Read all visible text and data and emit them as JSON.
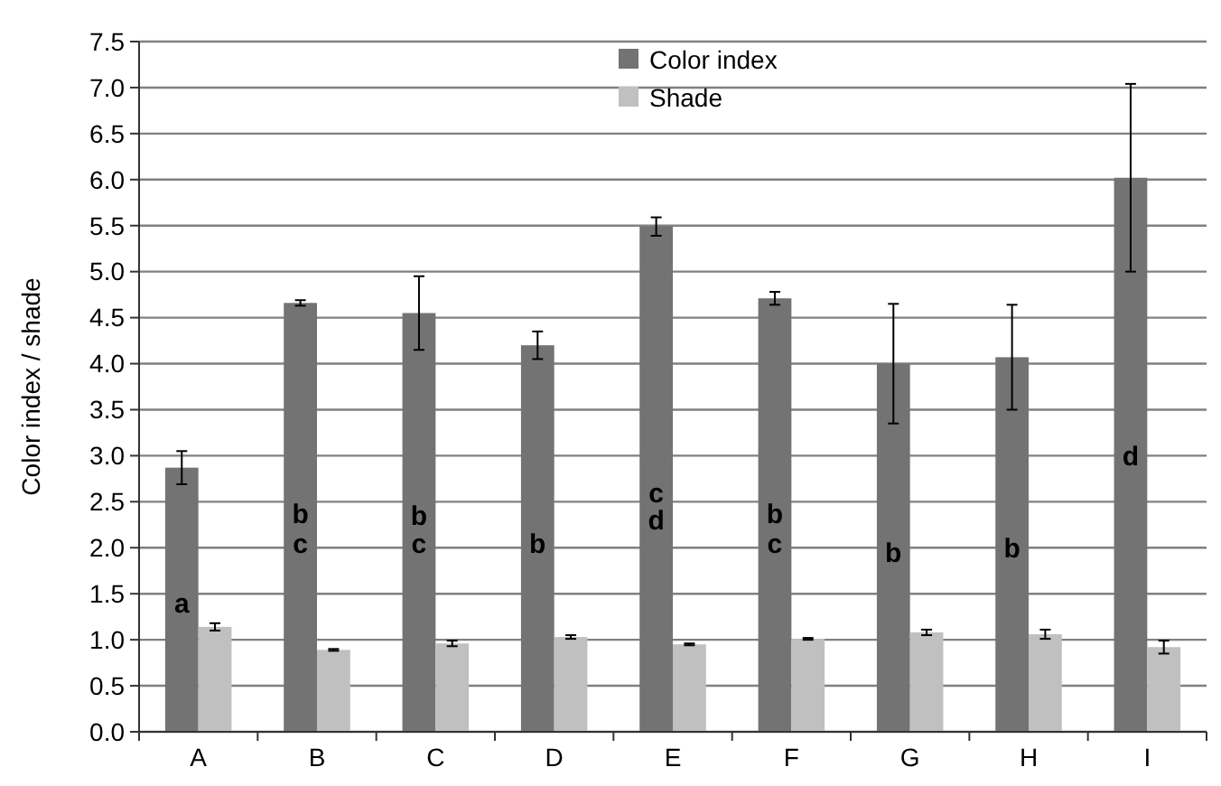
{
  "chart_data": {
    "type": "bar",
    "ylabel": "Color index / shade",
    "categories": [
      "A",
      "B",
      "C",
      "D",
      "E",
      "F",
      "G",
      "H",
      "I"
    ],
    "series": [
      {
        "name": "Color index",
        "color": "#737373",
        "values": [
          2.87,
          4.66,
          4.55,
          4.2,
          5.49,
          4.71,
          4.0,
          4.07,
          6.02
        ],
        "errors": [
          0.18,
          0.03,
          0.4,
          0.15,
          0.1,
          0.07,
          0.65,
          0.57,
          1.02
        ]
      },
      {
        "name": "Shade",
        "color": "#c0c0c0",
        "values": [
          1.14,
          0.89,
          0.96,
          1.03,
          0.95,
          1.01,
          1.08,
          1.06,
          0.92
        ],
        "errors": [
          0.04,
          0.01,
          0.03,
          0.02,
          0.01,
          0.01,
          0.03,
          0.05,
          0.07
        ]
      }
    ],
    "ylim": [
      0,
      7.5
    ],
    "yticks": [
      {
        "value": 0,
        "label": "0.0"
      },
      0.5,
      {
        "value": 1,
        "label": "1.0"
      },
      1.5,
      {
        "value": 2,
        "label": "2.0"
      },
      2.5,
      {
        "value": 3,
        "label": "3.0"
      },
      3.5,
      {
        "value": 4,
        "label": "4.0"
      },
      4.5,
      {
        "value": 5,
        "label": "5.0"
      },
      5.5,
      {
        "value": 6,
        "label": "6.0"
      },
      6.5,
      {
        "value": 7,
        "label": "7.0"
      },
      7.5
    ],
    "grid": "y",
    "legend": "top",
    "annotations": [
      {
        "text": "a",
        "x": "A",
        "y": 1.4
      },
      {
        "text": "b",
        "x": "B",
        "y": 2.37
      },
      {
        "text": "c",
        "x": "B",
        "y": 2.05
      },
      {
        "text": "b",
        "x": "C",
        "y": 2.35
      },
      {
        "text": "c",
        "x": "C",
        "y": 2.05
      },
      {
        "text": "b",
        "x": "D",
        "y": 2.05
      },
      {
        "text": "c",
        "x": "E",
        "y": 2.6
      },
      {
        "text": "d",
        "x": "E",
        "y": 2.3
      },
      {
        "text": "b",
        "x": "F",
        "y": 2.37
      },
      {
        "text": "c",
        "x": "F",
        "y": 2.05
      },
      {
        "text": "b",
        "x": "G",
        "y": 1.95
      },
      {
        "text": "b",
        "x": "H",
        "y": 2.0
      },
      {
        "text": "d",
        "x": "I",
        "y": 3.0
      }
    ]
  }
}
